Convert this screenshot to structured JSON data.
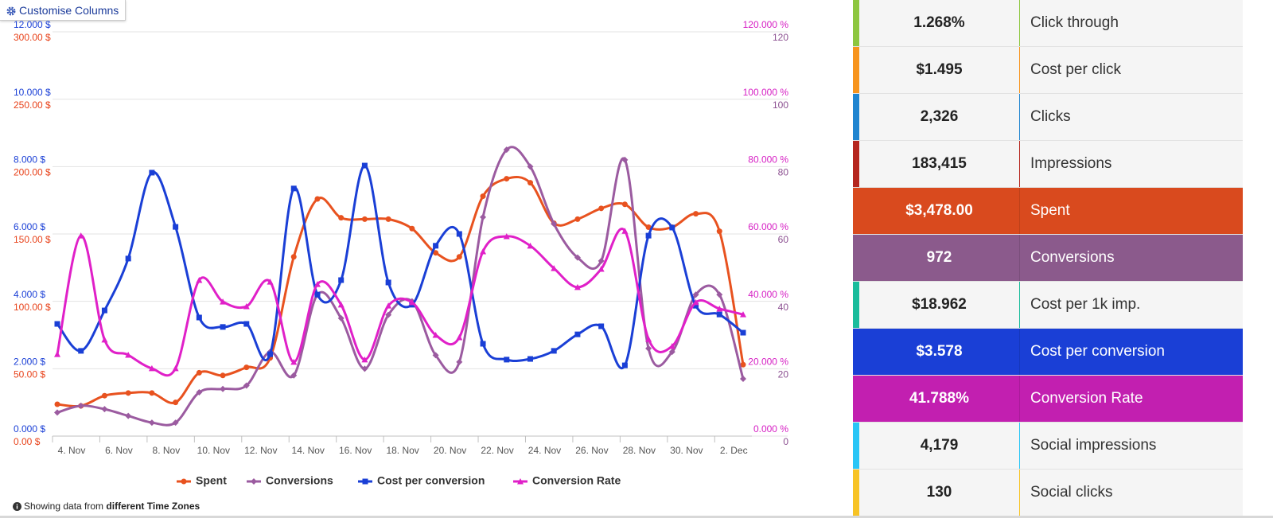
{
  "button": "Customise Columns",
  "chart_data": {
    "type": "line",
    "smooth": true,
    "categories": [
      "4. Nov",
      null,
      "6. Nov",
      null,
      "8. Nov",
      null,
      "10. Nov",
      null,
      "12. Nov",
      null,
      "14. Nov",
      null,
      "16. Nov",
      null,
      "18. Nov",
      null,
      "20. Nov",
      null,
      "22. Nov",
      null,
      "24. Nov",
      null,
      "26. Nov",
      null,
      "28. Nov",
      null,
      "30. Nov",
      null,
      "2. Dec",
      null
    ],
    "axes": [
      {
        "side": "left",
        "color": "#e8421a",
        "grid": true,
        "lim": [
          0,
          300
        ],
        "ticks": [
          {
            "value": 0,
            "label": "0.00 $"
          },
          {
            "value": 50,
            "label": "50.00 $"
          },
          {
            "value": 100,
            "label": "100.00 $"
          },
          {
            "value": 150,
            "label": "150.00 $"
          },
          {
            "value": 200,
            "label": "200.00 $"
          },
          {
            "value": 250,
            "label": "250.00 $"
          },
          {
            "value": 300,
            "label": "300.00 $"
          }
        ]
      },
      {
        "side": "left",
        "color": "#1a3fd6",
        "lim": [
          0,
          12
        ],
        "ticks": [
          {
            "value": 0,
            "label": "0.000 $"
          },
          {
            "value": 2,
            "label": "2.000 $"
          },
          {
            "value": 4,
            "label": "4.000 $"
          },
          {
            "value": 6,
            "label": "6.000 $"
          },
          {
            "value": 8,
            "label": "8.000 $"
          },
          {
            "value": 10,
            "label": "10.000 $"
          },
          {
            "value": 12,
            "label": "12.000 $"
          }
        ]
      },
      {
        "side": "right",
        "color": "#d61fc4",
        "lim": [
          0,
          120
        ],
        "ticks": [
          {
            "value": 0,
            "label": "0.000 %"
          },
          {
            "value": 20,
            "label": "20.000 %"
          },
          {
            "value": 40,
            "label": "40.000 %"
          },
          {
            "value": 60,
            "label": "60.000 %"
          },
          {
            "value": 80,
            "label": "80.000 %"
          },
          {
            "value": 100,
            "label": "100.000 %"
          },
          {
            "value": 120,
            "label": "120.000 %"
          }
        ]
      },
      {
        "side": "right",
        "color": "#8b4f90",
        "lim": [
          0,
          120
        ],
        "ticks": [
          0,
          20,
          40,
          60,
          80,
          100,
          120
        ]
      }
    ],
    "series": [
      {
        "name": "Spent",
        "color": "#e8521f",
        "axis": 0,
        "marker": "circle",
        "values": [
          23.6,
          22.4,
          30,
          32,
          32,
          25,
          47,
          45,
          51,
          58,
          133,
          176,
          162,
          161,
          161,
          154,
          136,
          133,
          178,
          191,
          188,
          158,
          161,
          169,
          172,
          155,
          155,
          165,
          152,
          53
        ]
      },
      {
        "name": "Conversions",
        "color": "#9b5ba0",
        "axis": 3,
        "marker": "diamond",
        "values": [
          7,
          9,
          8,
          6,
          4,
          4,
          13,
          14,
          15,
          25,
          18,
          42,
          35,
          20,
          36,
          40,
          24,
          22,
          65,
          85,
          80,
          63,
          53,
          52,
          82,
          26,
          25,
          42,
          42,
          17
        ]
      },
      {
        "name": "Cost per conversion",
        "color": "#1a3fd6",
        "axis": 1,
        "marker": "square",
        "values": [
          3.33,
          2.53,
          3.73,
          5.27,
          7.82,
          6.21,
          3.52,
          3.24,
          3.33,
          2.43,
          7.35,
          4.2,
          4.63,
          8.03,
          4.56,
          3.9,
          5.65,
          6.0,
          2.74,
          2.27,
          2.29,
          2.53,
          3.02,
          3.26,
          2.1,
          5.95,
          6.19,
          3.87,
          3.61,
          3.07
        ]
      },
      {
        "name": "Conversion Rate",
        "color": "#e020c8",
        "axis": 2,
        "marker": "triangle",
        "values": [
          24.3,
          59.5,
          28.6,
          24.1,
          20.1,
          20.1,
          46.3,
          39.9,
          38.5,
          45.8,
          22.0,
          45.1,
          39.0,
          22.7,
          38.7,
          39.7,
          30.0,
          29.3,
          54.8,
          59.3,
          56.5,
          49.8,
          44.2,
          49.6,
          60.9,
          28.8,
          26.7,
          39.7,
          37.8,
          36.1
        ]
      }
    ]
  },
  "footnote": {
    "text": "Showing data from",
    "emphasis": "different Time Zones"
  },
  "metrics": [
    {
      "value": "1.268%",
      "label": "Click through",
      "color": "#8dc63f",
      "active": false
    },
    {
      "value": "$1.495",
      "label": "Cost per click",
      "color": "#f7941d",
      "active": false
    },
    {
      "value": "2,326",
      "label": "Clicks",
      "color": "#2185d0",
      "active": false
    },
    {
      "value": "183,415",
      "label": "Impressions",
      "color": "#b5261e",
      "active": false
    },
    {
      "value": "$3,478.00",
      "label": "Spent",
      "color": "#d94a1e",
      "active": true
    },
    {
      "value": "972",
      "label": "Conversions",
      "color": "#8b5a8c",
      "active": true
    },
    {
      "value": "$18.962",
      "label": "Cost per 1k imp.",
      "color": "#1abc9c",
      "active": false
    },
    {
      "value": "$3.578",
      "label": "Cost per conversion",
      "color": "#1a3fd6",
      "active": true
    },
    {
      "value": "41.788%",
      "label": "Conversion Rate",
      "color": "#c21fb0",
      "active": true
    },
    {
      "value": "4,179",
      "label": "Social impressions",
      "color": "#29c5f6",
      "active": false
    },
    {
      "value": "130",
      "label": "Social clicks",
      "color": "#f7c325",
      "active": false
    }
  ]
}
